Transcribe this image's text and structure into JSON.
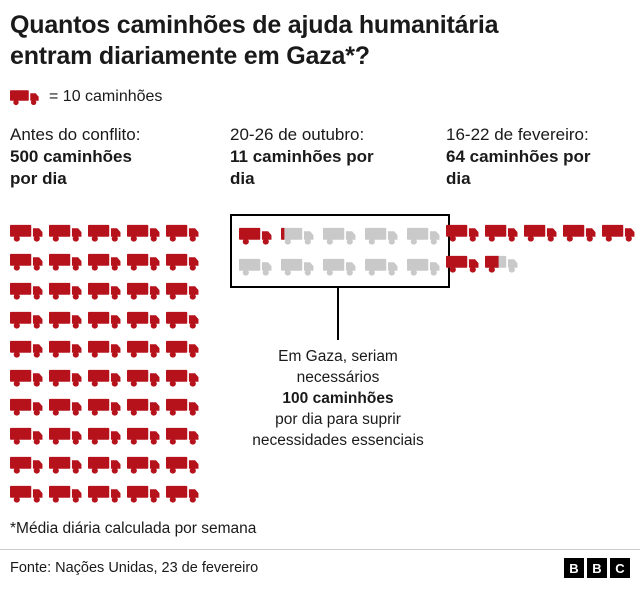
{
  "title": "Quantos caminhões de ajuda humanitária entram diariamente em Gaza*?",
  "legend": {
    "label": "= 10 caminhões"
  },
  "colors": {
    "truck_red": "#b5121b",
    "truck_gray": "#c9c9c9",
    "text": "#1a1a1a",
    "divider": "#cccccc"
  },
  "footnote": "*Média diária calculada por semana",
  "source": "Fonte: Nações Unidas, 23 de fevereiro",
  "bbc_logo": [
    "B",
    "B",
    "C"
  ],
  "chart_data": {
    "type": "pictogram",
    "icon": "truck",
    "unit_per_icon": 10,
    "legend": "= 10 caminhões",
    "groups": [
      {
        "period": "Antes do conflito:",
        "value": 500,
        "value_line1": "500 caminhões",
        "value_line2": "por dia",
        "full_icons": 50,
        "partial_fraction": 0,
        "gray_icons": 0,
        "icons_per_row": 5
      },
      {
        "period": "20-26 de outubro:",
        "value": 11,
        "value_line1": "11 caminhões por",
        "value_line2": "dia",
        "full_icons": 1,
        "partial_fraction": 0.1,
        "gray_icons": 8,
        "icons_per_row": 5,
        "boxed": true,
        "needed_total": 100,
        "annotation": {
          "line1": "Em Gaza, seriam",
          "line2": "necessários",
          "bold": "100 caminhões",
          "line3": "por dia para suprir",
          "line4": "necessidades essenciais"
        }
      },
      {
        "period": "16-22 de fevereiro:",
        "value": 64,
        "value_line1": "64 caminhões por",
        "value_line2": "dia",
        "full_icons": 6,
        "partial_fraction": 0.4,
        "gray_icons": 0,
        "icons_per_row": 5
      }
    ]
  }
}
